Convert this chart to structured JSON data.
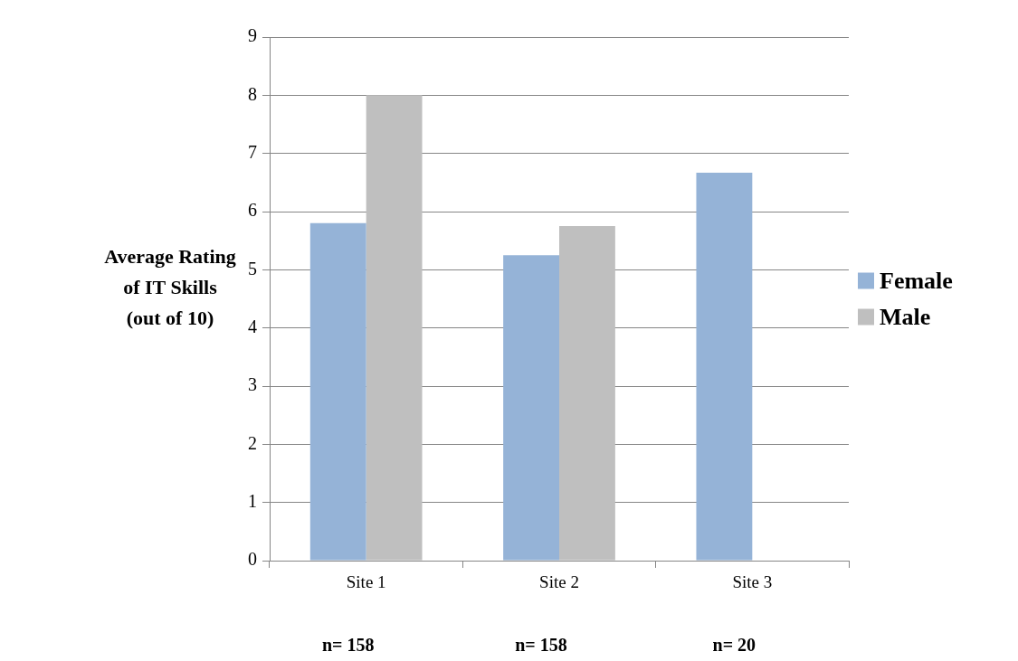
{
  "chart_data": {
    "type": "bar",
    "ylabel": "Average Rating\nof IT Skills\n(out of 10)",
    "categories": [
      "Site 1",
      "Site 2",
      "Site 3"
    ],
    "series": [
      {
        "name": "Female",
        "color": "#95b3d7",
        "values": [
          5.8,
          5.25,
          6.67
        ]
      },
      {
        "name": "Male",
        "color": "#bfbfbf",
        "values": [
          8.0,
          5.75,
          null
        ]
      }
    ],
    "ylim": [
      0,
      9
    ],
    "yticks": [
      0,
      1,
      2,
      3,
      4,
      5,
      6,
      7,
      8,
      9
    ],
    "grid": "y",
    "legend": "right",
    "annotations": [
      "n= 158",
      "n= 158",
      "n= 20"
    ]
  }
}
